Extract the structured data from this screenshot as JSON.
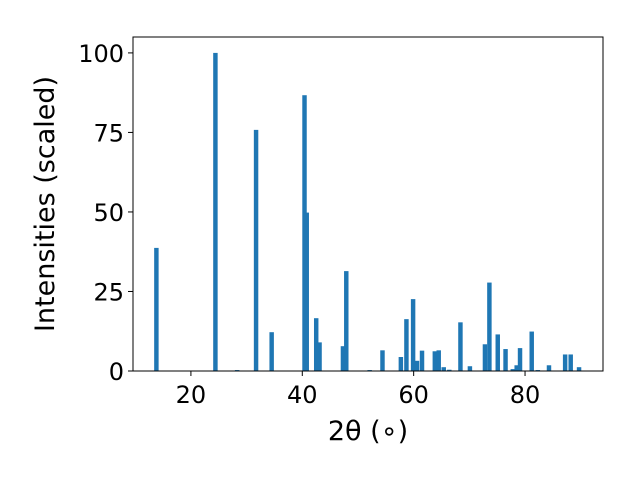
{
  "chart_data": {
    "type": "bar",
    "title": "",
    "xlabel": "2θ (∘)",
    "ylabel": "Intensities (scaled)",
    "xlim": [
      9.6,
      94.0
    ],
    "ylim": [
      0,
      105
    ],
    "xticks": [
      20,
      40,
      60,
      80
    ],
    "yticks": [
      0,
      25,
      50,
      75,
      100
    ],
    "grid": false,
    "bar_width": 0.8,
    "color": "#1f77b4",
    "series": [
      {
        "x": [
          13.8,
          24.4,
          28.3,
          31.7,
          34.5,
          40.4,
          40.8,
          42.5,
          43.1,
          47.3,
          47.9,
          52.1,
          54.4,
          57.7,
          58.7,
          59.9,
          60.6,
          61.5,
          63.8,
          64.5,
          65.4,
          66.4,
          68.4,
          70.1,
          72.8,
          73.6,
          75.1,
          76.5,
          77.8,
          78.5,
          79.1,
          81.2,
          82.3,
          84.3,
          87.2,
          88.2,
          89.7
        ],
        "y": [
          38.7,
          100,
          0.3,
          75.8,
          12.2,
          86.7,
          49.8,
          16.6,
          9.0,
          7.8,
          31.4,
          0.3,
          6.5,
          4.4,
          16.3,
          22.6,
          3.2,
          6.4,
          6.2,
          6.5,
          1.2,
          0.4,
          15.3,
          1.5,
          8.4,
          27.8,
          11.5,
          6.9,
          0.6,
          1.8,
          7.2,
          12.4,
          0.3,
          1.8,
          5.2,
          5.2,
          1.2
        ]
      }
    ]
  }
}
